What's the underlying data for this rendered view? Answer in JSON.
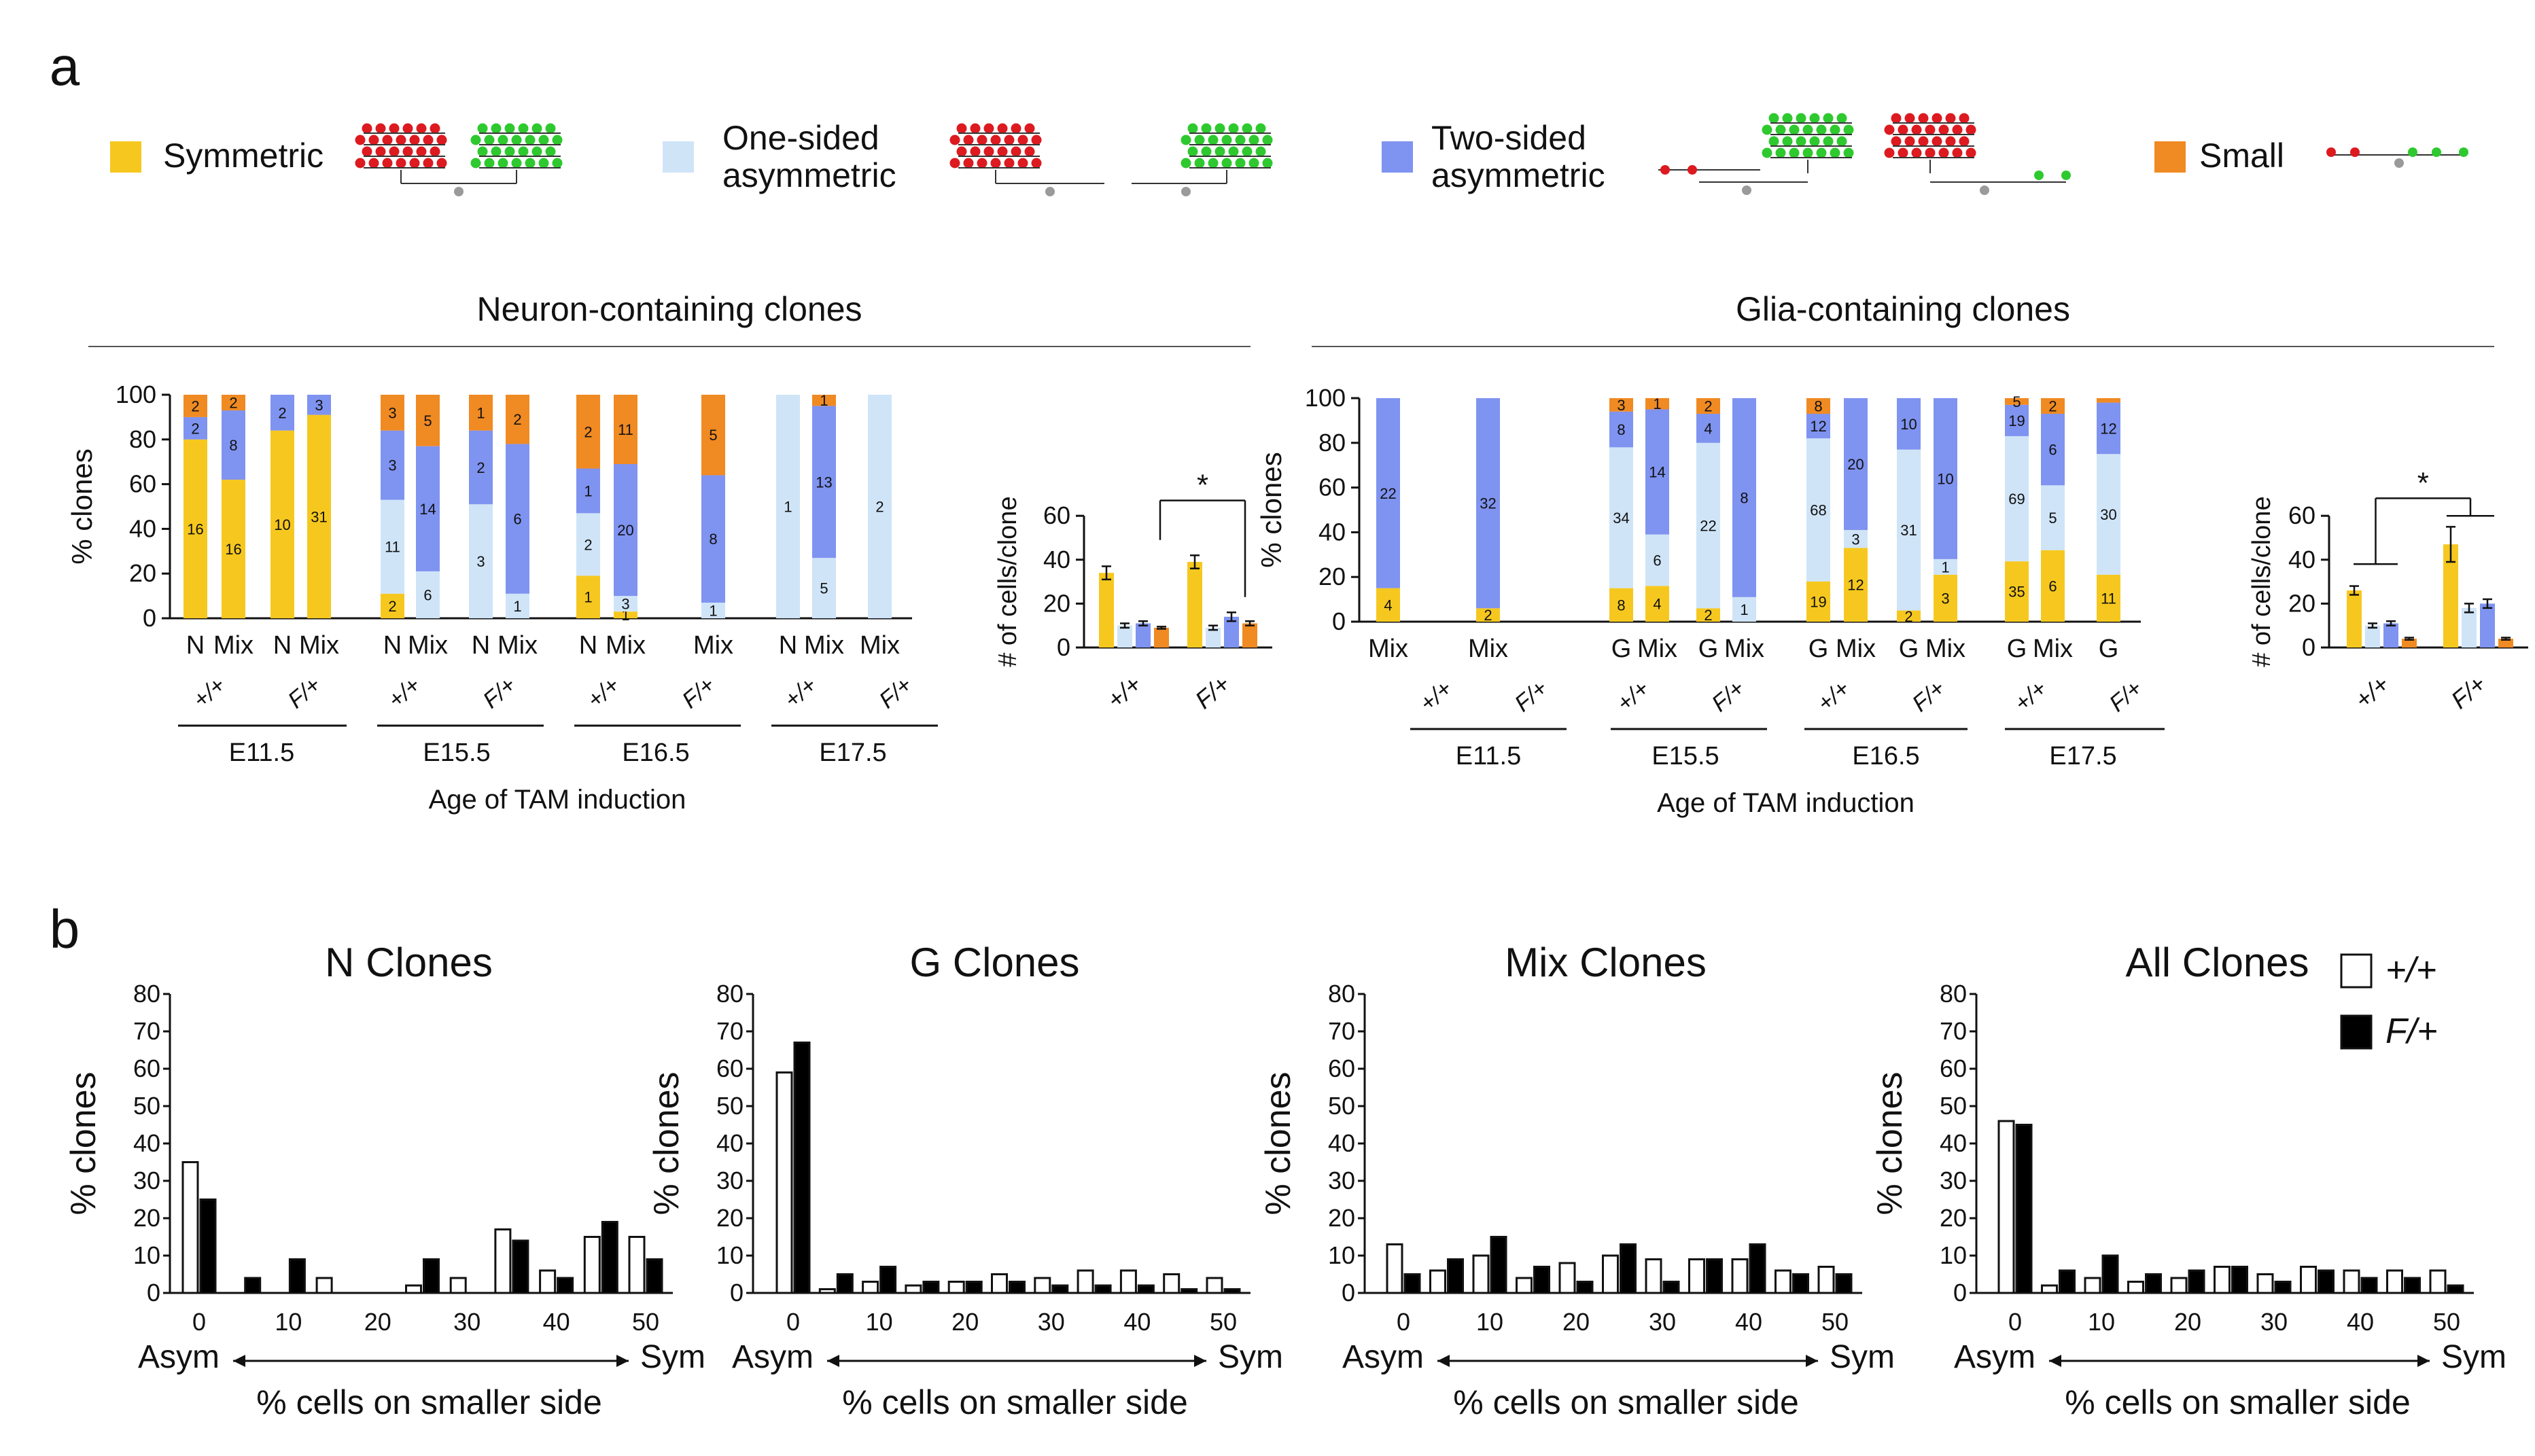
{
  "chart_data": {
    "type": "multi-panel",
    "colors": {
      "symmetric": "#f6c81f",
      "one_sided": "#cfe4f7",
      "two_sided": "#7f93f0",
      "small": "#f08a22",
      "outline": "#111111",
      "cells_open": "#ffffff",
      "cells_red": "#dc1a20",
      "cells_green": "#2ec92e",
      "stem_grey": "#9a9a9a"
    },
    "panel_a": {
      "label": "a",
      "legend": [
        {
          "key": "symmetric",
          "label": "Symmetric",
          "label_lines": [
            "Symmetric"
          ]
        },
        {
          "key": "one_sided",
          "label": "One-sided asymmetric",
          "label_lines": [
            "One-sided",
            "asymmetric"
          ]
        },
        {
          "key": "two_sided",
          "label": "Two-sided asymmetric",
          "label_lines": [
            "Two-sided",
            "asymmetric"
          ]
        },
        {
          "key": "small",
          "label": "Small",
          "label_lines": [
            "Small"
          ]
        }
      ],
      "xlabel": "Age of TAM induction",
      "groups": [
        {
          "title": "Neuron-containing clones",
          "ylabel": "% clones",
          "yticks": [
            0,
            20,
            40,
            60,
            80,
            100
          ],
          "genotypes": [
            "+/+",
            "F/+"
          ],
          "ages": [
            "E11.5",
            "E15.5",
            "E16.5",
            "E17.5"
          ],
          "bar_labels": [
            "N",
            "Mix"
          ],
          "bars": [
            {
              "age": "E11.5",
              "genotype": "+/+",
              "type": "N",
              "symmetric": 80,
              "one_sided": 0,
              "two_sided": 10,
              "small": 10,
              "labels": [
                "16",
                "",
                "2",
                "2"
              ]
            },
            {
              "age": "E11.5",
              "genotype": "+/+",
              "type": "Mix",
              "symmetric": 62,
              "one_sided": 0,
              "two_sided": 31,
              "small": 7,
              "labels": [
                "16",
                "",
                "8",
                "2"
              ]
            },
            {
              "age": "E11.5",
              "genotype": "F/+",
              "type": "N",
              "symmetric": 84,
              "one_sided": 0,
              "two_sided": 16,
              "small": 0,
              "labels": [
                "10",
                "",
                "2",
                ""
              ]
            },
            {
              "age": "E11.5",
              "genotype": "F/+",
              "type": "Mix",
              "symmetric": 91,
              "one_sided": 0,
              "two_sided": 9,
              "small": 0,
              "labels": [
                "31",
                "",
                "3",
                ""
              ]
            },
            {
              "age": "E15.5",
              "genotype": "+/+",
              "type": "N",
              "symmetric": 11,
              "one_sided": 42,
              "two_sided": 31,
              "small": 16,
              "labels": [
                "2",
                "11",
                "3",
                "3"
              ]
            },
            {
              "age": "E15.5",
              "genotype": "+/+",
              "type": "Mix",
              "symmetric": 0,
              "one_sided": 21,
              "two_sided": 56,
              "small": 23,
              "labels": [
                "",
                "6",
                "14",
                "5"
              ]
            },
            {
              "age": "E15.5",
              "genotype": "F/+",
              "type": "N",
              "symmetric": 0,
              "one_sided": 51,
              "two_sided": 33,
              "small": 16,
              "labels": [
                "",
                "3",
                "2",
                "1"
              ]
            },
            {
              "age": "E15.5",
              "genotype": "F/+",
              "type": "Mix",
              "symmetric": 0,
              "one_sided": 11,
              "two_sided": 67,
              "small": 22,
              "labels": [
                "",
                "1",
                "6",
                "2"
              ]
            },
            {
              "age": "E16.5",
              "genotype": "+/+",
              "type": "N",
              "symmetric": 19,
              "one_sided": 28,
              "two_sided": 20,
              "small": 33,
              "labels": [
                "1",
                "2",
                "1",
                "2"
              ]
            },
            {
              "age": "E16.5",
              "genotype": "+/+",
              "type": "Mix",
              "symmetric": 3,
              "one_sided": 7,
              "two_sided": 59,
              "small": 31,
              "labels": [
                "1",
                "3",
                "20",
                "11"
              ]
            },
            {
              "age": "E16.5",
              "genotype": "F/+",
              "type": "Mix",
              "symmetric": 0,
              "one_sided": 7,
              "two_sided": 57,
              "small": 36,
              "labels": [
                "",
                "1",
                "8",
                "5"
              ]
            },
            {
              "age": "E17.5",
              "genotype": "+/+",
              "type": "N",
              "symmetric": 0,
              "one_sided": 100,
              "two_sided": 0,
              "small": 0,
              "labels": [
                "",
                "1",
                "",
                ""
              ]
            },
            {
              "age": "E17.5",
              "genotype": "+/+",
              "type": "Mix",
              "symmetric": 0,
              "one_sided": 27,
              "two_sided": 68,
              "small": 5,
              "labels": [
                "",
                "5",
                "13",
                "1"
              ]
            },
            {
              "age": "E17.5",
              "genotype": "F/+",
              "type": "Mix",
              "symmetric": 0,
              "one_sided": 100,
              "two_sided": 0,
              "small": 0,
              "labels": [
                "",
                "2",
                "",
                ""
              ]
            }
          ],
          "cells_per_clone": {
            "ylabel": "# of cells/clone",
            "yticks": [
              0,
              20,
              40,
              60
            ],
            "significance": "*",
            "series": [
              {
                "genotype": "+/+",
                "values": {
                  "symmetric": 34,
                  "one_sided": 10,
                  "two_sided": 11,
                  "small": 9
                },
                "errors": {
                  "symmetric": 3,
                  "one_sided": 1,
                  "two_sided": 1,
                  "small": 0.5
                }
              },
              {
                "genotype": "F/+",
                "values": {
                  "symmetric": 39,
                  "one_sided": 9,
                  "two_sided": 14,
                  "small": 11
                },
                "errors": {
                  "symmetric": 3,
                  "one_sided": 1,
                  "two_sided": 2,
                  "small": 1
                }
              }
            ]
          }
        },
        {
          "title": "Glia-containing clones",
          "ylabel": "% clones",
          "yticks": [
            0,
            20,
            40,
            60,
            80,
            100
          ],
          "genotypes": [
            "+/+",
            "F/+"
          ],
          "ages": [
            "E11.5",
            "E15.5",
            "E16.5",
            "E17.5"
          ],
          "bar_labels": [
            "G",
            "Mix"
          ],
          "bars": [
            {
              "age": "E11.5",
              "genotype": "+/+",
              "type": "Mix",
              "symmetric": 15,
              "one_sided": 0,
              "two_sided": 85,
              "small": 0,
              "labels": [
                "4",
                "",
                "22",
                ""
              ]
            },
            {
              "age": "E11.5",
              "genotype": "F/+",
              "type": "Mix",
              "symmetric": 6,
              "one_sided": 0,
              "two_sided": 94,
              "small": 0,
              "labels": [
                "2",
                "",
                "32",
                ""
              ]
            },
            {
              "age": "E15.5",
              "genotype": "+/+",
              "type": "G",
              "symmetric": 15,
              "one_sided": 63,
              "two_sided": 16,
              "small": 6,
              "labels": [
                "8",
                "34",
                "8",
                "3"
              ]
            },
            {
              "age": "E15.5",
              "genotype": "+/+",
              "type": "Mix",
              "symmetric": 16,
              "one_sided": 23,
              "two_sided": 56,
              "small": 5,
              "labels": [
                "4",
                "6",
                "14",
                "1"
              ]
            },
            {
              "age": "E15.5",
              "genotype": "F/+",
              "type": "G",
              "symmetric": 6,
              "one_sided": 74,
              "two_sided": 13,
              "small": 7,
              "labels": [
                "2",
                "22",
                "4",
                "2"
              ]
            },
            {
              "age": "E15.5",
              "genotype": "F/+",
              "type": "Mix",
              "symmetric": 0,
              "one_sided": 11,
              "two_sided": 89,
              "small": 0,
              "labels": [
                "",
                "1",
                "8",
                ""
              ]
            },
            {
              "age": "E16.5",
              "genotype": "+/+",
              "type": "G",
              "symmetric": 18,
              "one_sided": 64,
              "two_sided": 11,
              "small": 7,
              "labels": [
                "19",
                "68",
                "12",
                "8"
              ]
            },
            {
              "age": "E16.5",
              "genotype": "+/+",
              "type": "Mix",
              "symmetric": 33,
              "one_sided": 8,
              "two_sided": 59,
              "small": 0,
              "labels": [
                "12",
                "3",
                "20",
                ""
              ]
            },
            {
              "age": "E16.5",
              "genotype": "F/+",
              "type": "G",
              "symmetric": 5,
              "one_sided": 72,
              "two_sided": 23,
              "small": 0,
              "labels": [
                "2",
                "31",
                "10",
                ""
              ]
            },
            {
              "age": "E16.5",
              "genotype": "F/+",
              "type": "Mix",
              "symmetric": 21,
              "one_sided": 7,
              "two_sided": 72,
              "small": 0,
              "labels": [
                "3",
                "1",
                "10",
                ""
              ]
            },
            {
              "age": "E17.5",
              "genotype": "+/+",
              "type": "G",
              "symmetric": 27,
              "one_sided": 56,
              "two_sided": 14,
              "small": 3,
              "labels": [
                "35",
                "69",
                "19",
                "5"
              ]
            },
            {
              "age": "E17.5",
              "genotype": "+/+",
              "type": "Mix",
              "symmetric": 32,
              "one_sided": 29,
              "two_sided": 32,
              "small": 7,
              "labels": [
                "6",
                "5",
                "6",
                "2"
              ]
            },
            {
              "age": "E17.5",
              "genotype": "F/+",
              "type": "G",
              "symmetric": 21,
              "one_sided": 54,
              "two_sided": 23,
              "small": 2,
              "labels": [
                "11",
                "30",
                "12",
                ""
              ]
            }
          ],
          "cells_per_clone": {
            "ylabel": "# of cells/clone",
            "yticks": [
              0,
              20,
              40,
              60
            ],
            "significance": "*",
            "series": [
              {
                "genotype": "+/+",
                "values": {
                  "symmetric": 26,
                  "one_sided": 10,
                  "two_sided": 11,
                  "small": 4
                },
                "errors": {
                  "symmetric": 2,
                  "one_sided": 1,
                  "two_sided": 1,
                  "small": 0.5
                }
              },
              {
                "genotype": "F/+",
                "values": {
                  "symmetric": 47,
                  "one_sided": 18,
                  "two_sided": 20,
                  "small": 4
                },
                "errors": {
                  "symmetric": 8,
                  "one_sided": 2,
                  "two_sided": 2,
                  "small": 0.5
                }
              }
            ]
          }
        }
      ]
    },
    "panel_b": {
      "label": "b",
      "type": "bar",
      "ylabel": "% clones",
      "xlabel": "% cells on smaller side",
      "ylim": [
        0,
        80
      ],
      "yticks": [
        0,
        10,
        20,
        30,
        40,
        50,
        60,
        70,
        80
      ],
      "xticks": [
        0,
        10,
        20,
        30,
        40,
        50
      ],
      "x_left_label": "Asym",
      "x_right_label": "Sym",
      "legend": [
        {
          "name": "+/+",
          "fill": "#ffffff"
        },
        {
          "name": "F/+",
          "fill": "#000000"
        }
      ],
      "bin_centers": [
        0,
        5,
        10,
        15,
        20,
        25,
        30,
        35,
        40,
        45,
        50
      ],
      "charts": [
        {
          "title": "N Clones",
          "series": [
            {
              "name": "+/+",
              "values": [
                35,
                0,
                0,
                4,
                0,
                2,
                4,
                17,
                6,
                15,
                15
              ]
            },
            {
              "name": "F/+",
              "values": [
                25,
                4,
                9,
                0,
                0,
                9,
                0,
                14,
                4,
                19,
                9
              ]
            }
          ]
        },
        {
          "title": "G Clones",
          "series": [
            {
              "name": "+/+",
              "values": [
                59,
                1,
                3,
                2,
                3,
                5,
                4,
                6,
                6,
                5,
                4
              ]
            },
            {
              "name": "F/+",
              "values": [
                67,
                5,
                7,
                3,
                3,
                3,
                2,
                2,
                2,
                1,
                1
              ]
            }
          ]
        },
        {
          "title": "Mix Clones",
          "series": [
            {
              "name": "+/+",
              "values": [
                13,
                6,
                10,
                4,
                8,
                10,
                9,
                9,
                9,
                6,
                7
              ]
            },
            {
              "name": "F/+",
              "values": [
                5,
                9,
                15,
                7,
                3,
                13,
                3,
                9,
                13,
                5,
                5
              ]
            }
          ]
        },
        {
          "title": "All Clones",
          "series": [
            {
              "name": "+/+",
              "values": [
                46,
                2,
                4,
                3,
                4,
                7,
                5,
                7,
                6,
                6,
                6
              ]
            },
            {
              "name": "F/+",
              "values": [
                45,
                6,
                10,
                5,
                6,
                7,
                3,
                6,
                4,
                4,
                2
              ]
            }
          ]
        }
      ]
    }
  }
}
